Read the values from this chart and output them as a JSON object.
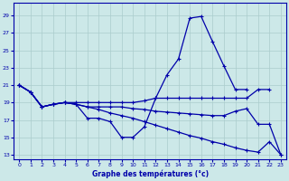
{
  "title": "Graphe des températures (°c)",
  "bg_color": "#cce8e8",
  "line_color": "#0000aa",
  "ylim": [
    12.5,
    30.5
  ],
  "xlim": [
    -0.5,
    23.5
  ],
  "yticks": [
    13,
    15,
    17,
    19,
    21,
    23,
    25,
    27,
    29
  ],
  "xticks": [
    0,
    1,
    2,
    3,
    4,
    5,
    6,
    7,
    8,
    9,
    10,
    11,
    12,
    13,
    14,
    15,
    16,
    17,
    18,
    19,
    20,
    21,
    22,
    23
  ],
  "series": [
    {
      "x": [
        0,
        1,
        2,
        3,
        4,
        5,
        6,
        7,
        8,
        9,
        10,
        11,
        12,
        13,
        14,
        15,
        16,
        17,
        18,
        19,
        20
      ],
      "y": [
        21,
        20.2,
        18.5,
        18.8,
        19.0,
        18.8,
        17.2,
        17.2,
        16.8,
        15.0,
        15.0,
        16.2,
        19.5,
        22.2,
        24.0,
        28.7,
        28.9,
        26.0,
        23.2,
        20.5,
        20.5
      ]
    },
    {
      "x": [
        0,
        1,
        2,
        3,
        4,
        5,
        6,
        7,
        8,
        9,
        10,
        11,
        12,
        13,
        14,
        15,
        16,
        17,
        18,
        19,
        20,
        21,
        22
      ],
      "y": [
        21,
        20.2,
        18.5,
        18.8,
        19.0,
        19.0,
        19.0,
        19.0,
        19.0,
        19.0,
        19.0,
        19.2,
        19.5,
        19.5,
        19.5,
        19.5,
        19.5,
        19.5,
        19.5,
        19.5,
        19.5,
        20.5,
        20.5
      ]
    },
    {
      "x": [
        0,
        1,
        2,
        3,
        4,
        5,
        6,
        7,
        8,
        9,
        10,
        11,
        12,
        13,
        14,
        15,
        16,
        17,
        18,
        19,
        20,
        21,
        22,
        23
      ],
      "y": [
        21,
        20.2,
        18.5,
        18.8,
        19.0,
        18.8,
        18.5,
        18.5,
        18.5,
        18.5,
        18.3,
        18.2,
        18.0,
        17.9,
        17.8,
        17.7,
        17.6,
        17.5,
        17.5,
        18.0,
        18.3,
        16.5,
        16.5,
        13.0
      ]
    },
    {
      "x": [
        0,
        1,
        2,
        3,
        4,
        5,
        6,
        7,
        8,
        9,
        10,
        11,
        12,
        13,
        14,
        15,
        16,
        17,
        18,
        19,
        20,
        21,
        22,
        23
      ],
      "y": [
        21,
        20.2,
        18.5,
        18.8,
        19.0,
        18.8,
        18.5,
        18.2,
        17.8,
        17.5,
        17.2,
        16.8,
        16.4,
        16.0,
        15.6,
        15.2,
        14.9,
        14.5,
        14.2,
        13.8,
        13.5,
        13.3,
        14.5,
        13.0
      ]
    }
  ]
}
